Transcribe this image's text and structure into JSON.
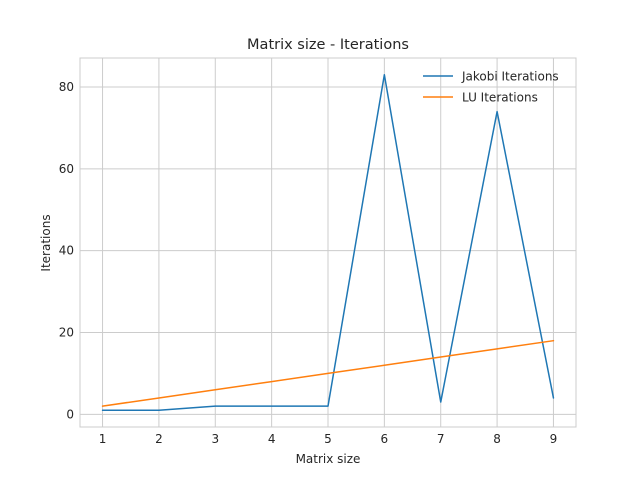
{
  "chart_data": {
    "type": "line",
    "title": "Matrix size - Iterations",
    "xlabel": "Matrix size",
    "ylabel": "Iterations",
    "x": [
      1,
      2,
      3,
      4,
      5,
      6,
      7,
      8,
      9
    ],
    "xticks": [
      1,
      2,
      3,
      4,
      5,
      6,
      7,
      8,
      9
    ],
    "yticks": [
      0,
      20,
      40,
      60,
      80
    ],
    "xlim": [
      0.6,
      9.4
    ],
    "ylim": [
      -3.1,
      87.1
    ],
    "grid": true,
    "legend_position": "top-right",
    "series": [
      {
        "name": "Jakobi Iterations",
        "color": "#1f77b4",
        "values": [
          1,
          1,
          2,
          2,
          2,
          83,
          3,
          74,
          4
        ]
      },
      {
        "name": "LU Iterations",
        "color": "#ff7f0e",
        "values": [
          2,
          4,
          6,
          8,
          10,
          12,
          14,
          16,
          18
        ]
      }
    ]
  }
}
